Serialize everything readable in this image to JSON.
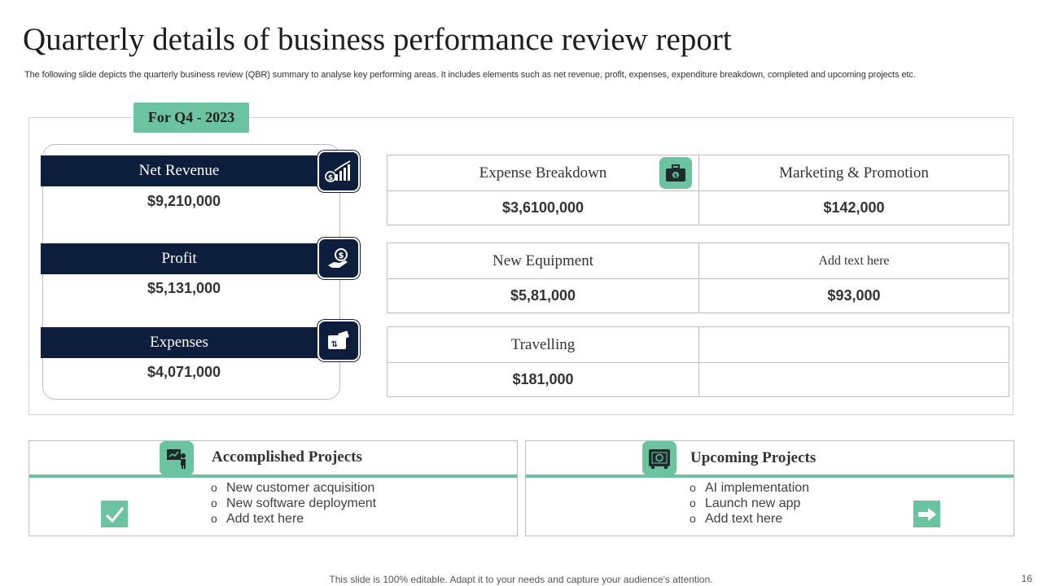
{
  "title": "Quarterly details of business performance review report",
  "subtitle": "The following slide depicts the quarterly business review (QBR) summary to analyse key performing areas. It includes elements such as net revenue, profit, expenses, expenditure breakdown, completed and upcoming projects etc.",
  "period": "For Q4 - 2023",
  "metrics": [
    {
      "label": "Net Revenue",
      "value": "$9,210,000",
      "icon": "revenue-growth-icon"
    },
    {
      "label": "Profit",
      "value": "$5,131,000",
      "icon": "money-bag-hand-icon"
    },
    {
      "label": "Expenses",
      "value": "$4,071,000",
      "icon": "wallet-icon"
    }
  ],
  "expenses": {
    "row1": {
      "left_label": "Expense Breakdown",
      "left_value": "$3,6100,000",
      "right_label": "Marketing & Promotion",
      "right_value": "$142,000"
    },
    "row2": {
      "left_label": "New Equipment",
      "left_value": "$5,81,000",
      "right_label": "Add text here",
      "right_value": "$93,000"
    },
    "row3": {
      "left_label": "Travelling",
      "left_value": "$181,000",
      "right_label": "",
      "right_value": ""
    },
    "icon": "briefcase-icon"
  },
  "accomplished": {
    "title": "Accomplished Projects",
    "items": [
      "New customer acquisition",
      "New software deployment",
      "Add text here"
    ],
    "icon": "presentation-icon",
    "mark": "checkmark-icon"
  },
  "upcoming": {
    "title": "Upcoming Projects",
    "items": [
      "AI implementation",
      "Launch new app",
      "Add text here"
    ],
    "icon": "safe-icon",
    "mark": "arrow-right-icon"
  },
  "footer": "This slide is 100% editable. Adapt it to your needs and capture your audience's attention.",
  "page_number": "16",
  "colors": {
    "navy": "#0c1e3b",
    "green": "#6cc3a0",
    "border": "#bfbfbf"
  }
}
